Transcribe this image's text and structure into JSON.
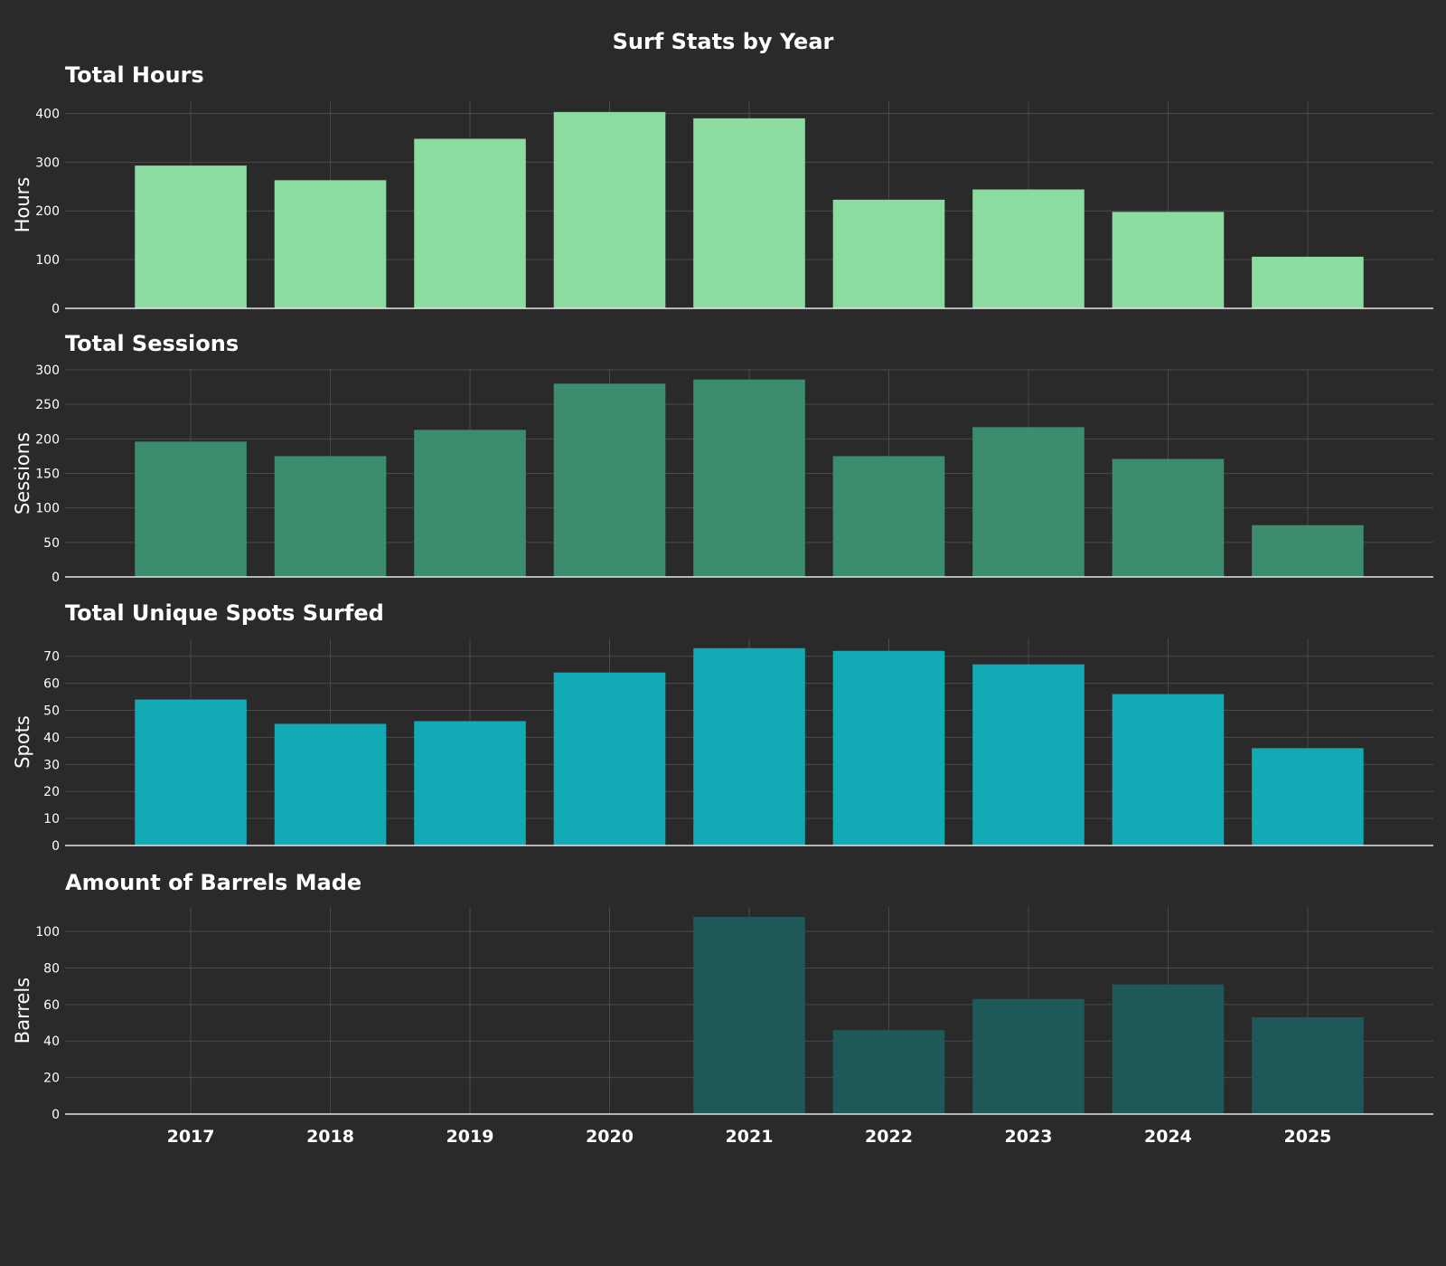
{
  "title": "Surf Stats by Year",
  "chart_data": [
    {
      "type": "bar",
      "title": "Total Hours",
      "ylabel": "Hours",
      "xlabel": "",
      "categories": [
        "2017",
        "2018",
        "2019",
        "2020",
        "2021",
        "2022",
        "2023",
        "2024",
        "2025"
      ],
      "values": [
        293,
        263,
        348,
        403,
        390,
        223,
        244,
        198,
        106
      ],
      "ylim": [
        0,
        425
      ],
      "yticks": [
        0,
        100,
        200,
        300,
        400
      ],
      "color": "#8cdba0",
      "grid": true
    },
    {
      "type": "bar",
      "title": "Total Sessions",
      "ylabel": "Sessions",
      "xlabel": "",
      "categories": [
        "2017",
        "2018",
        "2019",
        "2020",
        "2021",
        "2022",
        "2023",
        "2024",
        "2025"
      ],
      "values": [
        196,
        175,
        213,
        280,
        286,
        175,
        217,
        171,
        75
      ],
      "ylim": [
        0,
        300
      ],
      "yticks": [
        0,
        50,
        100,
        150,
        200,
        250,
        300
      ],
      "color": "#3c8c6e",
      "grid": true
    },
    {
      "type": "bar",
      "title": "Total Unique Spots Surfed",
      "ylabel": "Spots",
      "xlabel": "",
      "categories": [
        "2017",
        "2018",
        "2019",
        "2020",
        "2021",
        "2022",
        "2023",
        "2024",
        "2025"
      ],
      "values": [
        54,
        45,
        46,
        64,
        73,
        72,
        67,
        56,
        36
      ],
      "ylim": [
        0,
        76.6
      ],
      "yticks": [
        0,
        10,
        20,
        30,
        40,
        50,
        60,
        70
      ],
      "color": "#12aab5",
      "grid": true
    },
    {
      "type": "bar",
      "title": "Amount of Barrels Made",
      "ylabel": "Barrels",
      "xlabel": "",
      "categories": [
        "2017",
        "2018",
        "2019",
        "2020",
        "2021",
        "2022",
        "2023",
        "2024",
        "2025"
      ],
      "values": [
        0,
        0,
        0,
        0,
        108,
        46,
        63,
        71,
        53
      ],
      "ylim": [
        0,
        113.4
      ],
      "yticks": [
        0,
        20,
        40,
        60,
        80,
        100
      ],
      "color": "#1e5858",
      "grid": true
    }
  ]
}
